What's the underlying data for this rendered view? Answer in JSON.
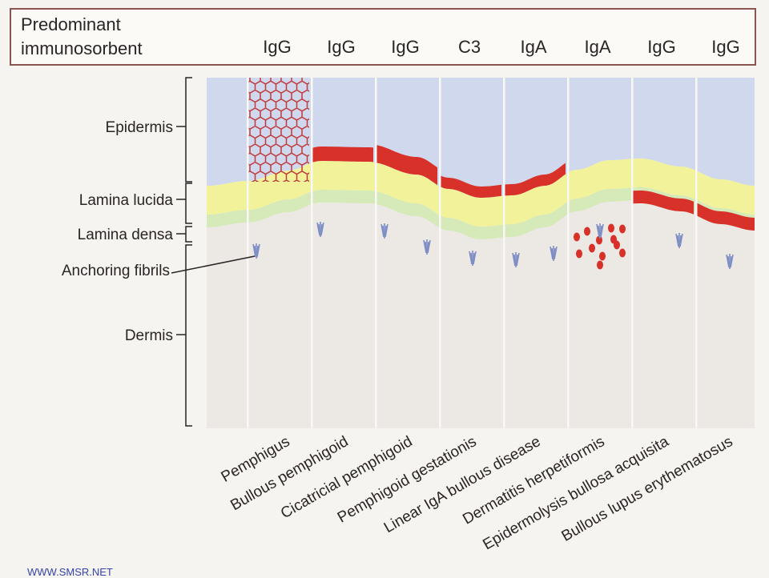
{
  "header": {
    "title_line1": "Predominant",
    "title_line2": "immunosorbent",
    "immunoglobulins": [
      "IgG",
      "IgG",
      "IgG",
      "C3",
      "IgA",
      "IgA",
      "IgG",
      "IgG"
    ]
  },
  "layers": {
    "epidermis": "Epidermis",
    "lamina_lucida": "Lamina lucida",
    "lamina_densa": "Lamina densa",
    "anchoring_fibrils": "Anchoring fibrils",
    "dermis": "Dermis"
  },
  "diseases": [
    "Pemphigus",
    "Bullous pemphigoid",
    "Cicatricial pemphigoid",
    "Pemphigoid gestationis",
    "Linear IgA bullous disease",
    "Dermatitis herpetiformis",
    "Epidermolysis bullosa acquisita",
    "Bullous lupus erythematosus"
  ],
  "colors": {
    "epidermis": "#cfd8ec",
    "lamina_lucida": "#f2f29a",
    "lamina_densa": "#d5eab8",
    "dermis": "#ece8e4",
    "deposit": "#d8312a",
    "fibril": "#7f8fc6",
    "frame": "#8a5550"
  },
  "footer": "WWW.SMSR.NET"
}
